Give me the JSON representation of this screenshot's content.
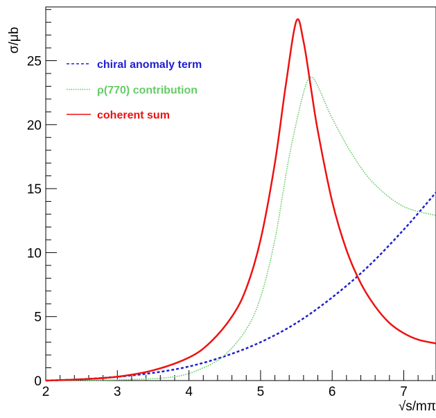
{
  "chart_data": {
    "type": "line",
    "title": "",
    "xlabel": "√s/mπ",
    "ylabel": "σ/μb",
    "xlim": [
      2,
      7.45
    ],
    "ylim": [
      0,
      29.2
    ],
    "x_ticks": [
      2,
      3,
      4,
      5,
      6,
      7
    ],
    "y_ticks": [
      0,
      5,
      10,
      15,
      20,
      25
    ],
    "grid": false,
    "legend_position": "top-left",
    "series": [
      {
        "name": "chiral anomaly term",
        "color": "#1f1fd0",
        "style": "dashed",
        "x": [
          2.0,
          2.5,
          3.0,
          3.5,
          4.0,
          4.5,
          5.0,
          5.5,
          6.0,
          6.5,
          7.0,
          7.45
        ],
        "y": [
          0.0,
          0.1,
          0.3,
          0.6,
          1.1,
          1.9,
          3.0,
          4.5,
          6.5,
          8.9,
          11.8,
          14.7
        ]
      },
      {
        "name": "ρ(770) contribution",
        "color": "#66cc66",
        "style": "dotted",
        "x": [
          2.0,
          3.0,
          3.8,
          4.2,
          4.5,
          4.8,
          5.0,
          5.2,
          5.4,
          5.6,
          5.7,
          5.8,
          6.0,
          6.3,
          6.6,
          7.0,
          7.45
        ],
        "y": [
          0.0,
          0.05,
          0.3,
          1.0,
          2.0,
          4.0,
          6.5,
          11.0,
          17.5,
          22.5,
          23.7,
          23.0,
          20.5,
          17.5,
          15.3,
          13.6,
          12.9
        ]
      },
      {
        "name": "coherent sum",
        "color": "#ee1111",
        "style": "solid",
        "x": [
          2.0,
          2.5,
          3.0,
          3.5,
          4.0,
          4.3,
          4.6,
          4.8,
          5.0,
          5.2,
          5.35,
          5.5,
          5.6,
          5.7,
          5.8,
          6.0,
          6.2,
          6.4,
          6.6,
          6.8,
          7.0,
          7.2,
          7.45
        ],
        "y": [
          0.0,
          0.1,
          0.3,
          0.8,
          1.8,
          3.0,
          5.0,
          7.2,
          11.0,
          17.0,
          23.0,
          28.1,
          26.5,
          23.0,
          19.5,
          14.0,
          10.2,
          7.6,
          5.8,
          4.5,
          3.7,
          3.2,
          2.9
        ]
      }
    ]
  }
}
